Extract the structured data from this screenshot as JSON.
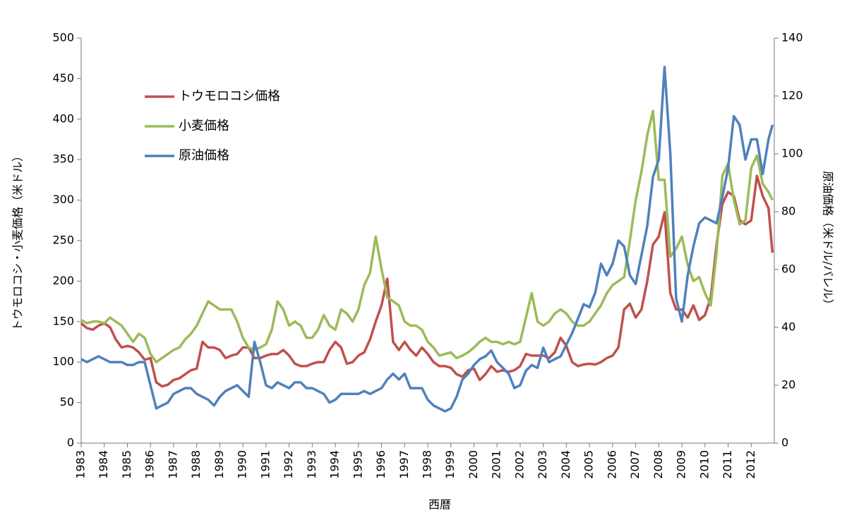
{
  "chart_data": {
    "type": "line",
    "xlabel": "西暦",
    "ylabel": "トウモロコシ・小麦価格（米ドル）",
    "y2label": "原油価格（米ドル/バレル）",
    "xlim": [
      1983,
      2013
    ],
    "xticks": [
      1983,
      1984,
      1985,
      1986,
      1987,
      1988,
      1989,
      1990,
      1991,
      1992,
      1993,
      1994,
      1995,
      1996,
      1997,
      1998,
      1999,
      2000,
      2001,
      2002,
      2003,
      2004,
      2005,
      2006,
      2007,
      2008,
      2009,
      2010,
      2011,
      2012
    ],
    "ylim": [
      0,
      500
    ],
    "yticks": [
      0,
      50,
      100,
      150,
      200,
      250,
      300,
      350,
      400,
      450,
      500
    ],
    "y2lim": [
      0,
      140
    ],
    "y2ticks": [
      0,
      20,
      40,
      60,
      80,
      100,
      120,
      140
    ],
    "grid": false,
    "legend": "upper left",
    "x": [
      1983,
      1983.25,
      1983.5,
      1983.75,
      1984,
      1984.25,
      1984.5,
      1984.75,
      1985,
      1985.25,
      1985.5,
      1985.75,
      1986,
      1986.25,
      1986.5,
      1986.75,
      1987,
      1987.25,
      1987.5,
      1987.75,
      1988,
      1988.25,
      1988.5,
      1988.75,
      1989,
      1989.25,
      1989.5,
      1989.75,
      1990,
      1990.25,
      1990.5,
      1990.75,
      1991,
      1991.25,
      1991.5,
      1991.75,
      1992,
      1992.25,
      1992.5,
      1992.75,
      1993,
      1993.25,
      1993.5,
      1993.75,
      1994,
      1994.25,
      1994.5,
      1994.75,
      1995,
      1995.25,
      1995.5,
      1995.75,
      1996,
      1996.25,
      1996.5,
      1996.75,
      1997,
      1997.25,
      1997.5,
      1997.75,
      1998,
      1998.25,
      1998.5,
      1998.75,
      1999,
      1999.25,
      1999.5,
      1999.75,
      2000,
      2000.25,
      2000.5,
      2000.75,
      2001,
      2001.25,
      2001.5,
      2001.75,
      2002,
      2002.25,
      2002.5,
      2002.75,
      2003,
      2003.25,
      2003.5,
      2003.75,
      2004,
      2004.25,
      2004.5,
      2004.75,
      2005,
      2005.25,
      2005.5,
      2005.75,
      2006,
      2006.25,
      2006.5,
      2006.75,
      2007,
      2007.25,
      2007.5,
      2007.75,
      2008,
      2008.25,
      2008.5,
      2008.75,
      2009,
      2009.25,
      2009.5,
      2009.75,
      2010,
      2010.25,
      2010.5,
      2010.75,
      2011,
      2011.25,
      2011.5,
      2011.75,
      2012,
      2012.25,
      2012.5,
      2012.75,
      2012.92
    ],
    "series": [
      {
        "name": "トウモロコシ価格",
        "color": "#c0504d",
        "values": [
          148,
          142,
          140,
          145,
          148,
          143,
          128,
          118,
          120,
          118,
          112,
          103,
          105,
          75,
          70,
          72,
          78,
          80,
          85,
          90,
          92,
          125,
          118,
          118,
          115,
          105,
          108,
          110,
          118,
          118,
          105,
          105,
          108,
          110,
          110,
          115,
          108,
          98,
          95,
          95,
          98,
          100,
          100,
          115,
          125,
          118,
          98,
          100,
          108,
          112,
          128,
          150,
          170,
          203,
          125,
          115,
          125,
          115,
          108,
          118,
          110,
          100,
          95,
          95,
          93,
          85,
          82,
          90,
          92,
          78,
          85,
          95,
          88,
          90,
          88,
          90,
          95,
          110,
          108,
          108,
          108,
          105,
          112,
          130,
          120,
          100,
          95,
          97,
          98,
          97,
          100,
          105,
          108,
          118,
          165,
          172,
          155,
          165,
          200,
          245,
          255,
          285,
          185,
          165,
          165,
          155,
          170,
          152,
          158,
          180,
          245,
          295,
          310,
          305,
          275,
          270,
          275,
          330,
          305,
          290,
          235
        ]
      },
      {
        "name": "小麦価格",
        "color": "#9bbb59",
        "values": [
          152,
          148,
          150,
          150,
          148,
          155,
          150,
          145,
          135,
          125,
          135,
          130,
          110,
          100,
          105,
          110,
          115,
          118,
          128,
          135,
          145,
          160,
          175,
          170,
          165,
          165,
          165,
          150,
          130,
          118,
          115,
          118,
          122,
          140,
          175,
          165,
          145,
          150,
          145,
          130,
          130,
          140,
          158,
          145,
          140,
          165,
          160,
          150,
          165,
          195,
          210,
          255,
          215,
          180,
          175,
          170,
          150,
          145,
          145,
          140,
          125,
          118,
          108,
          110,
          112,
          105,
          108,
          112,
          118,
          125,
          130,
          125,
          125,
          122,
          125,
          122,
          125,
          155,
          185,
          150,
          145,
          150,
          160,
          165,
          160,
          150,
          145,
          145,
          150,
          160,
          170,
          185,
          195,
          200,
          205,
          250,
          300,
          335,
          380,
          410,
          325,
          325,
          230,
          240,
          255,
          220,
          200,
          205,
          185,
          170,
          235,
          330,
          345,
          300,
          270,
          275,
          340,
          355,
          320,
          310,
          300
        ]
      },
      {
        "name": "原油価格",
        "color": "#4f81bd",
        "axis": "y2",
        "values": [
          29,
          28,
          29,
          30,
          29,
          28,
          28,
          28,
          27,
          27,
          28,
          28,
          20,
          12,
          13,
          14,
          17,
          18,
          19,
          19,
          17,
          16,
          15,
          13,
          16,
          18,
          19,
          20,
          18,
          16,
          35,
          28,
          20,
          19,
          21,
          20,
          19,
          21,
          21,
          19,
          19,
          18,
          17,
          14,
          15,
          17,
          17,
          17,
          17,
          18,
          17,
          18,
          19,
          22,
          24,
          22,
          24,
          19,
          19,
          19,
          15,
          13,
          12,
          11,
          12,
          16,
          22,
          24,
          27,
          29,
          30,
          32,
          28,
          26,
          24,
          19,
          20,
          25,
          27,
          26,
          33,
          28,
          29,
          30,
          34,
          38,
          43,
          48,
          47,
          52,
          62,
          58,
          62,
          70,
          68,
          58,
          55,
          65,
          75,
          92,
          98,
          130,
          100,
          50,
          42,
          58,
          68,
          76,
          78,
          77,
          76,
          85,
          95,
          113,
          110,
          98,
          105,
          105,
          93,
          105,
          110
        ]
      }
    ]
  }
}
